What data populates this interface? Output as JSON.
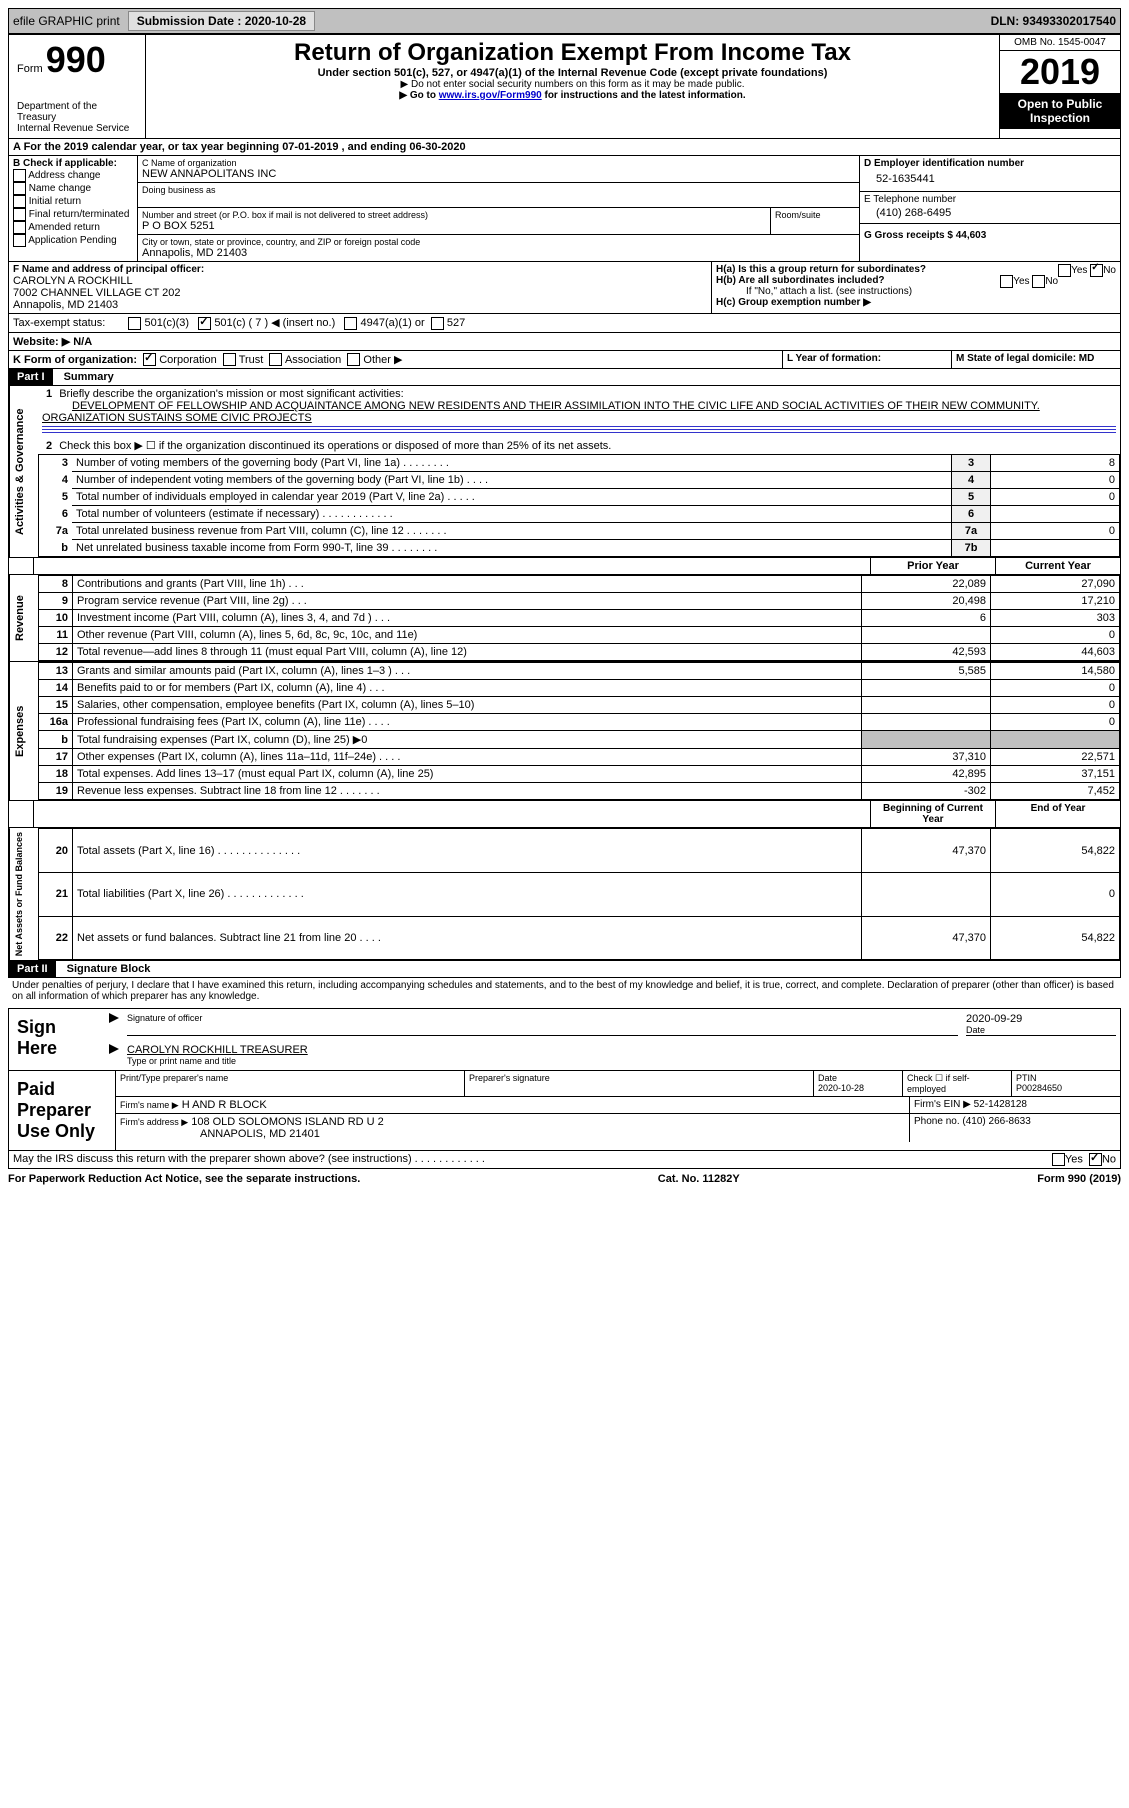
{
  "header_bar": {
    "efile": "efile GRAPHIC print",
    "submission": "Submission Date : 2020-10-28",
    "dln": "DLN: 93493302017540"
  },
  "top": {
    "form_label": "Form",
    "form_num": "990",
    "dept": "Department of the Treasury\nInternal Revenue Service",
    "title": "Return of Organization Exempt From Income Tax",
    "subtitle": "Under section 501(c), 527, or 4947(a)(1) of the Internal Revenue Code (except private foundations)",
    "note1": "▶ Do not enter social security numbers on this form as it may be made public.",
    "note2_pre": "▶ Go to ",
    "note2_link": "www.irs.gov/Form990",
    "note2_post": " for instructions and the latest information.",
    "omb": "OMB No. 1545-0047",
    "year": "2019",
    "open": "Open to Public Inspection"
  },
  "period": "A For the 2019 calendar year, or tax year beginning 07-01-2019    , and ending 06-30-2020",
  "boxB": {
    "label": "B Check if applicable:",
    "items": [
      "Address change",
      "Name change",
      "Initial return",
      "Final return/terminated",
      "Amended return",
      "Application Pending"
    ]
  },
  "boxC": {
    "name_label": "C Name of organization",
    "name": "NEW ANNAPOLITANS INC",
    "dba_label": "Doing business as",
    "addr_label": "Number and street (or P.O. box if mail is not delivered to street address)",
    "room_label": "Room/suite",
    "addr": "P O BOX 5251",
    "city_label": "City or town, state or province, country, and ZIP or foreign postal code",
    "city": "Annapolis, MD  21403"
  },
  "boxD": {
    "label": "D Employer identification number",
    "val": "52-1635441"
  },
  "boxE": {
    "label": "E Telephone number",
    "val": "(410) 268-6495"
  },
  "boxG": {
    "label": "G Gross receipts $ 44,603"
  },
  "boxF": {
    "label": "F  Name and address of principal officer:",
    "name": "CAROLYN A ROCKHILL",
    "addr1": "7002 CHANNEL VILLAGE CT 202",
    "addr2": "Annapolis, MD  21403"
  },
  "boxH": {
    "a_label": "H(a)  Is this a group return for subordinates?",
    "b_label": "H(b)  Are all subordinates included?",
    "note": "If \"No,\" attach a list. (see instructions)",
    "c_label": "H(c)  Group exemption number ▶"
  },
  "taxExempt": {
    "label": "Tax-exempt status:",
    "opts": [
      "501(c)(3)",
      "501(c) ( 7 ) ◀ (insert no.)",
      "4947(a)(1) or",
      "527"
    ]
  },
  "boxJ": "Website: ▶  N/A",
  "boxK": "K Form of organization:",
  "K_opts": [
    "Corporation",
    "Trust",
    "Association",
    "Other ▶"
  ],
  "boxL": "L Year of formation:",
  "boxM": "M State of legal domicile: MD",
  "part1": {
    "label": "Part I",
    "title": "Summary",
    "q1": "Briefly describe the organization's mission or most significant activities:",
    "q1_ans": "DEVELOPMENT OF FELLOWSHIP AND ACQUAINTANCE AMONG NEW RESIDENTS AND THEIR ASSIMILATION INTO THE CIVIC LIFE AND SOCIAL ACTIVITIES OF THEIR NEW COMMUNITY. ORGANIZATION SUSTAINS SOME CIVIC PROJECTS",
    "q2": "Check this box ▶ ☐  if the organization discontinued its operations or disposed of more than 25% of its net assets.",
    "rows_gov": [
      {
        "n": "3",
        "t": "Number of voting members of the governing body (Part VI, line 1a)  .   .   .   .   .   .   .   .",
        "box": "3",
        "v": "8"
      },
      {
        "n": "4",
        "t": "Number of independent voting members of the governing body (Part VI, line 1b)  .   .   .   .",
        "box": "4",
        "v": "0"
      },
      {
        "n": "5",
        "t": "Total number of individuals employed in calendar year 2019 (Part V, line 2a)  .   .   .   .   .",
        "box": "5",
        "v": "0"
      },
      {
        "n": "6",
        "t": "Total number of volunteers (estimate if necessary)   .   .   .   .   .   .   .   .   .   .   .   .",
        "box": "6",
        "v": ""
      },
      {
        "n": "7a",
        "t": "Total unrelated business revenue from Part VIII, column (C), line 12  .   .   .   .   .   .   .",
        "box": "7a",
        "v": "0"
      },
      {
        "n": "b",
        "t": "Net unrelated business taxable income from Form 990-T, line 39   .   .   .   .   .   .   .   .",
        "box": "7b",
        "v": ""
      }
    ],
    "col_headers": {
      "prior": "Prior Year",
      "current": "Current Year"
    },
    "rows_rev": [
      {
        "n": "8",
        "t": "Contributions and grants (Part VIII, line 1h)   .   .   .",
        "p": "22,089",
        "c": "27,090"
      },
      {
        "n": "9",
        "t": "Program service revenue (Part VIII, line 2g)   .   .   .",
        "p": "20,498",
        "c": "17,210"
      },
      {
        "n": "10",
        "t": "Investment income (Part VIII, column (A), lines 3, 4, and 7d )   .   .   .",
        "p": "6",
        "c": "303"
      },
      {
        "n": "11",
        "t": "Other revenue (Part VIII, column (A), lines 5, 6d, 8c, 9c, 10c, and 11e)",
        "p": "",
        "c": "0"
      },
      {
        "n": "12",
        "t": "Total revenue—add lines 8 through 11 (must equal Part VIII, column (A), line 12)",
        "p": "42,593",
        "c": "44,603"
      }
    ],
    "rows_exp": [
      {
        "n": "13",
        "t": "Grants and similar amounts paid (Part IX, column (A), lines 1–3 )  .   .   .",
        "p": "5,585",
        "c": "14,580"
      },
      {
        "n": "14",
        "t": "Benefits paid to or for members (Part IX, column (A), line 4)   .   .   .",
        "p": "",
        "c": "0"
      },
      {
        "n": "15",
        "t": "Salaries, other compensation, employee benefits (Part IX, column (A), lines 5–10)",
        "p": "",
        "c": "0"
      },
      {
        "n": "16a",
        "t": "Professional fundraising fees (Part IX, column (A), line 11e)  .   .   .   .",
        "p": "",
        "c": "0"
      },
      {
        "n": "b",
        "t": "Total fundraising expenses (Part IX, column (D), line 25) ▶0",
        "p": "shaded",
        "c": "shaded"
      },
      {
        "n": "17",
        "t": "Other expenses (Part IX, column (A), lines 11a–11d, 11f–24e)  .   .   .   .",
        "p": "37,310",
        "c": "22,571"
      },
      {
        "n": "18",
        "t": "Total expenses. Add lines 13–17 (must equal Part IX, column (A), line 25)",
        "p": "42,895",
        "c": "37,151"
      },
      {
        "n": "19",
        "t": "Revenue less expenses. Subtract line 18 from line 12  .   .   .   .   .   .   .",
        "p": "-302",
        "c": "7,452"
      }
    ],
    "col_headers2": {
      "prior": "Beginning of Current Year",
      "current": "End of Year"
    },
    "rows_net": [
      {
        "n": "20",
        "t": "Total assets (Part X, line 16)  .   .   .   .   .   .   .   .   .   .   .   .   .   .",
        "p": "47,370",
        "c": "54,822"
      },
      {
        "n": "21",
        "t": "Total liabilities (Part X, line 26)  .   .   .   .   .   .   .   .   .   .   .   .   .",
        "p": "",
        "c": "0"
      },
      {
        "n": "22",
        "t": "Net assets or fund balances. Subtract line 21 from line 20  .   .   .   .",
        "p": "47,370",
        "c": "54,822"
      }
    ],
    "side_labels": [
      "Activities & Governance",
      "Revenue",
      "Expenses",
      "Net Assets or Fund Balances"
    ]
  },
  "part2": {
    "label": "Part II",
    "title": "Signature Block",
    "decl": "Under penalties of perjury, I declare that I have examined this return, including accompanying schedules and statements, and to the best of my knowledge and belief, it is true, correct, and complete. Declaration of preparer (other than officer) is based on all information of which preparer has any knowledge.",
    "sign_here": "Sign Here",
    "sig_officer": "Signature of officer",
    "date": "2020-09-29",
    "date_label": "Date",
    "name_title": "CAROLYN ROCKHILL  TREASURER",
    "name_label": "Type or print name and title",
    "paid": "Paid Preparer Use Only",
    "prep_name_label": "Print/Type preparer's name",
    "prep_sig_label": "Preparer's signature",
    "prep_date_label": "Date",
    "prep_date": "2020-10-28",
    "check_label": "Check ☐ if self-employed",
    "ptin_label": "PTIN",
    "ptin": "P00284650",
    "firm_name_label": "Firm's name    ▶",
    "firm_name": "H AND R BLOCK",
    "firm_ein_label": "Firm's EIN ▶",
    "firm_ein": "52-1428128",
    "firm_addr_label": "Firm's address ▶",
    "firm_addr1": "108 OLD SOLOMONS ISLAND RD U 2",
    "firm_addr2": "ANNAPOLIS, MD  21401",
    "firm_phone_label": "Phone no.",
    "firm_phone": "(410) 266-8633",
    "discuss": "May the IRS discuss this return with the preparer shown above? (see instructions)   .   .   .   .   .   .   .   .   .   .   .   ."
  },
  "footer": {
    "left": "For Paperwork Reduction Act Notice, see the separate instructions.",
    "mid": "Cat. No. 11282Y",
    "right": "Form 990 (2019)"
  }
}
